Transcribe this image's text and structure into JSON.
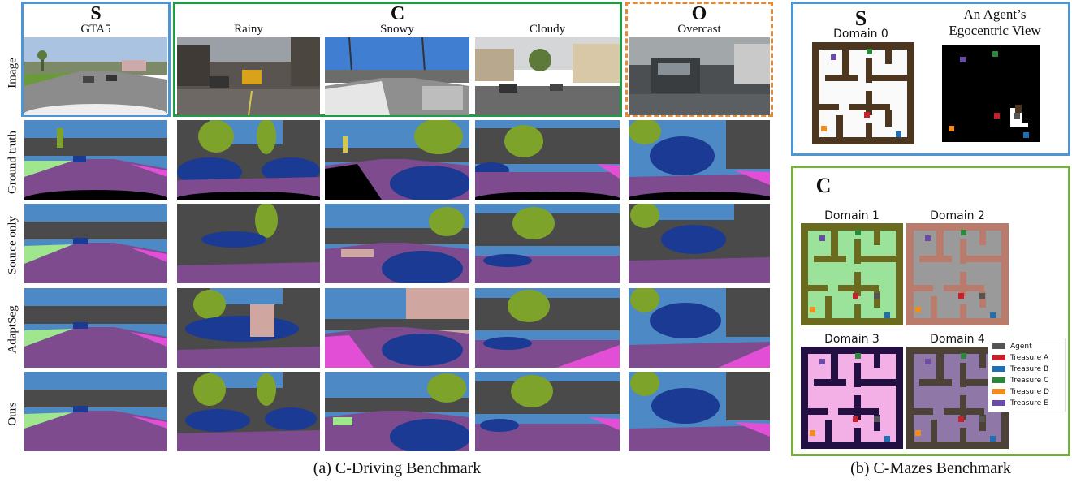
{
  "colors": {
    "source_frame": "#4d96d6",
    "compound_frame": "#1f9c47",
    "open_frame": "#e38a3a",
    "mazes_source_frame": "#4d96d6",
    "mazes_compound_frame": "#79ad41",
    "seg_sky": "#4d89c4",
    "seg_building": "#4a4a4a",
    "seg_vegetation": "#7ea32a",
    "seg_road": "#7d4b8e",
    "seg_sidewalk": "#e24fd6",
    "seg_car": "#1b3a93",
    "seg_terrain": "#9fe68f",
    "seg_void": "#000000",
    "maze_wall_d0": "#4c3620",
    "maze_floor_d0": "#fafafa",
    "maze_wall_d1": "#6b6b1f",
    "maze_floor_d1": "#9be39b",
    "maze_wall_d2": "#b97c6c",
    "maze_floor_d2": "#9a9a9a",
    "maze_wall_d3": "#221043",
    "maze_floor_d3": "#f3b0e6",
    "maze_wall_d4": "#4c4236",
    "maze_floor_d4": "#8f77a8"
  },
  "driving": {
    "row_labels": [
      "Image",
      "Ground truth",
      "Source only",
      "AdaptSeg",
      "Ours"
    ],
    "source_letter": "S",
    "source_name": "GTA5",
    "compound_letter": "C",
    "compound_names": [
      "Rainy",
      "Snowy",
      "Cloudy"
    ],
    "open_letter": "O",
    "open_name": "Overcast",
    "caption": "(a) C-Driving Benchmark"
  },
  "mazes": {
    "source_letter": "S",
    "domain0": "Domain 0",
    "egocentric_title_line1": "An Agent’s",
    "egocentric_title_line2": "Egocentric View",
    "compound_letter": "C",
    "domain1": "Domain 1",
    "domain2": "Domain 2",
    "domain3": "Domain 3",
    "domain4": "Domain 4",
    "caption": "(b) C-Mazes Benchmark",
    "legend": [
      {
        "label": "Agent",
        "color": "#555555"
      },
      {
        "label": "Treasure A",
        "color": "#c8202a"
      },
      {
        "label": "Treasure B",
        "color": "#1f6fb5"
      },
      {
        "label": "Treasure C",
        "color": "#2a8a3a"
      },
      {
        "label": "Treasure D",
        "color": "#f28c1c"
      },
      {
        "label": "Treasure E",
        "color": "#6b4ba8"
      }
    ]
  }
}
